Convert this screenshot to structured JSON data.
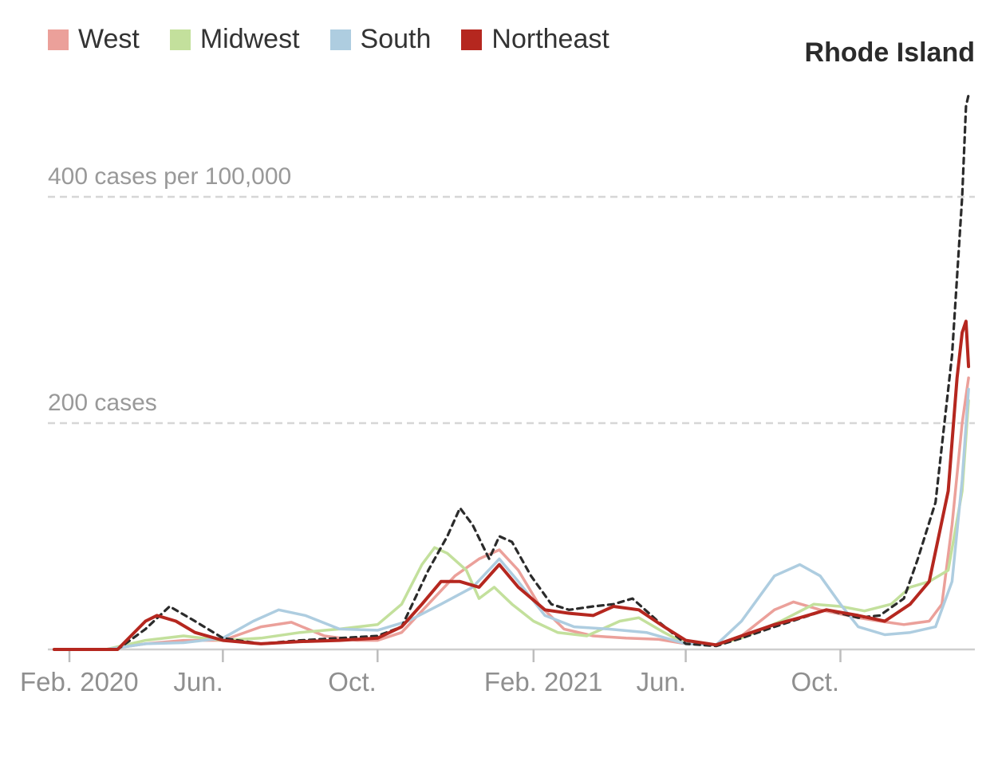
{
  "chart_data": {
    "type": "line",
    "title": "",
    "xlabel": "",
    "ylabel": "",
    "x_range": [
      "2020-01-15",
      "2022-01-15"
    ],
    "ylim": [
      0,
      500
    ],
    "grid": "horizontal dashed",
    "legend_position": "top-left",
    "gridlines": [
      {
        "value": 200,
        "label": "200 cases"
      },
      {
        "value": 400,
        "label": "400 cases per 100,000"
      }
    ],
    "x_ticks": [
      {
        "date": "2020-02-01",
        "label": "Feb. 2020"
      },
      {
        "date": "2020-06-01",
        "label": "Jun."
      },
      {
        "date": "2020-10-01",
        "label": "Oct."
      },
      {
        "date": "2021-02-01",
        "label": "Feb. 2021"
      },
      {
        "date": "2021-06-01",
        "label": "Jun."
      },
      {
        "date": "2021-10-01",
        "label": "Oct."
      }
    ],
    "annotation": {
      "label": "Rhode Island",
      "series": "Rhode Island"
    },
    "series": [
      {
        "name": "West",
        "color": "#eba09a",
        "width": 3.5,
        "dash": "",
        "legend": true,
        "points": [
          [
            "2020-01-20",
            0
          ],
          [
            "2020-03-01",
            0
          ],
          [
            "2020-04-01",
            5
          ],
          [
            "2020-05-01",
            8
          ],
          [
            "2020-06-01",
            8
          ],
          [
            "2020-07-01",
            20
          ],
          [
            "2020-07-25",
            24
          ],
          [
            "2020-08-20",
            12
          ],
          [
            "2020-09-15",
            8
          ],
          [
            "2020-10-01",
            8
          ],
          [
            "2020-10-20",
            15
          ],
          [
            "2020-11-10",
            40
          ],
          [
            "2020-12-01",
            65
          ],
          [
            "2020-12-20",
            80
          ],
          [
            "2021-01-05",
            88
          ],
          [
            "2021-01-20",
            70
          ],
          [
            "2021-02-05",
            40
          ],
          [
            "2021-02-25",
            18
          ],
          [
            "2021-03-20",
            12
          ],
          [
            "2021-04-15",
            10
          ],
          [
            "2021-05-10",
            9
          ],
          [
            "2021-06-01",
            5
          ],
          [
            "2021-06-25",
            4
          ],
          [
            "2021-07-15",
            12
          ],
          [
            "2021-08-10",
            35
          ],
          [
            "2021-08-25",
            42
          ],
          [
            "2021-09-15",
            35
          ],
          [
            "2021-10-15",
            28
          ],
          [
            "2021-11-01",
            25
          ],
          [
            "2021-11-20",
            22
          ],
          [
            "2021-12-10",
            25
          ],
          [
            "2021-12-20",
            40
          ],
          [
            "2021-12-28",
            110
          ],
          [
            "2022-01-05",
            200
          ],
          [
            "2022-01-10",
            240
          ]
        ]
      },
      {
        "name": "Midwest",
        "color": "#c3e09c",
        "width": 3.5,
        "dash": "",
        "legend": true,
        "points": [
          [
            "2020-01-20",
            0
          ],
          [
            "2020-03-01",
            0
          ],
          [
            "2020-04-01",
            8
          ],
          [
            "2020-05-01",
            12
          ],
          [
            "2020-06-01",
            8
          ],
          [
            "2020-07-01",
            10
          ],
          [
            "2020-08-01",
            15
          ],
          [
            "2020-09-01",
            18
          ],
          [
            "2020-10-01",
            22
          ],
          [
            "2020-10-20",
            40
          ],
          [
            "2020-11-05",
            75
          ],
          [
            "2020-11-15",
            90
          ],
          [
            "2020-11-25",
            85
          ],
          [
            "2020-12-10",
            70
          ],
          [
            "2020-12-20",
            45
          ],
          [
            "2021-01-01",
            55
          ],
          [
            "2021-01-15",
            40
          ],
          [
            "2021-02-01",
            25
          ],
          [
            "2021-02-20",
            15
          ],
          [
            "2021-03-15",
            12
          ],
          [
            "2021-04-10",
            25
          ],
          [
            "2021-04-25",
            28
          ],
          [
            "2021-05-15",
            15
          ],
          [
            "2021-06-01",
            5
          ],
          [
            "2021-06-25",
            4
          ],
          [
            "2021-07-15",
            10
          ],
          [
            "2021-08-15",
            25
          ],
          [
            "2021-09-10",
            40
          ],
          [
            "2021-10-01",
            38
          ],
          [
            "2021-10-20",
            34
          ],
          [
            "2021-11-10",
            40
          ],
          [
            "2021-11-25",
            55
          ],
          [
            "2021-12-10",
            60
          ],
          [
            "2021-12-25",
            70
          ],
          [
            "2022-01-05",
            140
          ],
          [
            "2022-01-10",
            220
          ]
        ]
      },
      {
        "name": "South",
        "color": "#aecde0",
        "width": 3.5,
        "dash": "",
        "legend": true,
        "points": [
          [
            "2020-01-20",
            0
          ],
          [
            "2020-03-01",
            0
          ],
          [
            "2020-04-01",
            5
          ],
          [
            "2020-05-01",
            6
          ],
          [
            "2020-06-01",
            10
          ],
          [
            "2020-06-25",
            25
          ],
          [
            "2020-07-15",
            35
          ],
          [
            "2020-08-05",
            30
          ],
          [
            "2020-09-01",
            18
          ],
          [
            "2020-10-01",
            17
          ],
          [
            "2020-10-25",
            25
          ],
          [
            "2020-11-20",
            40
          ],
          [
            "2020-12-15",
            55
          ],
          [
            "2021-01-05",
            80
          ],
          [
            "2021-01-20",
            60
          ],
          [
            "2021-02-10",
            30
          ],
          [
            "2021-03-05",
            20
          ],
          [
            "2021-04-01",
            18
          ],
          [
            "2021-05-01",
            15
          ],
          [
            "2021-06-01",
            5
          ],
          [
            "2021-06-25",
            4
          ],
          [
            "2021-07-15",
            25
          ],
          [
            "2021-08-10",
            65
          ],
          [
            "2021-08-30",
            75
          ],
          [
            "2021-09-15",
            65
          ],
          [
            "2021-10-01",
            40
          ],
          [
            "2021-10-15",
            20
          ],
          [
            "2021-11-05",
            13
          ],
          [
            "2021-11-25",
            15
          ],
          [
            "2021-12-15",
            20
          ],
          [
            "2021-12-28",
            60
          ],
          [
            "2022-01-05",
            150
          ],
          [
            "2022-01-10",
            230
          ]
        ]
      },
      {
        "name": "Rhode Island",
        "color": "#2b2b2b",
        "width": 3.2,
        "dash": "7 6",
        "legend": false,
        "points": [
          [
            "2020-01-20",
            0
          ],
          [
            "2020-03-10",
            0
          ],
          [
            "2020-04-01",
            18
          ],
          [
            "2020-04-20",
            38
          ],
          [
            "2020-05-10",
            25
          ],
          [
            "2020-06-01",
            10
          ],
          [
            "2020-07-01",
            5
          ],
          [
            "2020-08-01",
            8
          ],
          [
            "2020-09-01",
            10
          ],
          [
            "2020-10-01",
            12
          ],
          [
            "2020-10-20",
            20
          ],
          [
            "2020-11-10",
            70
          ],
          [
            "2020-11-25",
            100
          ],
          [
            "2020-12-05",
            125
          ],
          [
            "2020-12-15",
            110
          ],
          [
            "2020-12-28",
            80
          ],
          [
            "2021-01-05",
            100
          ],
          [
            "2021-01-15",
            95
          ],
          [
            "2021-01-30",
            65
          ],
          [
            "2021-02-15",
            40
          ],
          [
            "2021-03-01",
            35
          ],
          [
            "2021-03-20",
            38
          ],
          [
            "2021-04-05",
            40
          ],
          [
            "2021-04-20",
            45
          ],
          [
            "2021-05-10",
            25
          ],
          [
            "2021-06-01",
            5
          ],
          [
            "2021-06-25",
            3
          ],
          [
            "2021-07-15",
            10
          ],
          [
            "2021-08-10",
            20
          ],
          [
            "2021-09-01",
            28
          ],
          [
            "2021-09-20",
            35
          ],
          [
            "2021-10-15",
            28
          ],
          [
            "2021-11-01",
            30
          ],
          [
            "2021-11-20",
            45
          ],
          [
            "2021-12-01",
            80
          ],
          [
            "2021-12-15",
            130
          ],
          [
            "2021-12-28",
            260
          ],
          [
            "2022-01-05",
            400
          ],
          [
            "2022-01-08",
            480
          ],
          [
            "2022-01-10",
            490
          ]
        ]
      },
      {
        "name": "Northeast",
        "color": "#b5271f",
        "width": 4,
        "dash": "",
        "legend": true,
        "points": [
          [
            "2020-01-20",
            0
          ],
          [
            "2020-03-10",
            0
          ],
          [
            "2020-04-01",
            25
          ],
          [
            "2020-04-10",
            30
          ],
          [
            "2020-04-25",
            25
          ],
          [
            "2020-05-10",
            15
          ],
          [
            "2020-06-01",
            8
          ],
          [
            "2020-07-01",
            5
          ],
          [
            "2020-08-01",
            7
          ],
          [
            "2020-09-01",
            8
          ],
          [
            "2020-10-01",
            10
          ],
          [
            "2020-10-20",
            20
          ],
          [
            "2020-11-05",
            40
          ],
          [
            "2020-11-20",
            60
          ],
          [
            "2020-12-05",
            60
          ],
          [
            "2020-12-20",
            55
          ],
          [
            "2021-01-05",
            75
          ],
          [
            "2021-01-20",
            55
          ],
          [
            "2021-02-10",
            35
          ],
          [
            "2021-03-01",
            32
          ],
          [
            "2021-03-20",
            30
          ],
          [
            "2021-04-05",
            38
          ],
          [
            "2021-04-25",
            35
          ],
          [
            "2021-05-15",
            20
          ],
          [
            "2021-06-01",
            8
          ],
          [
            "2021-06-25",
            4
          ],
          [
            "2021-07-15",
            12
          ],
          [
            "2021-08-10",
            22
          ],
          [
            "2021-08-30",
            28
          ],
          [
            "2021-09-20",
            35
          ],
          [
            "2021-10-15",
            30
          ],
          [
            "2021-11-05",
            25
          ],
          [
            "2021-11-25",
            40
          ],
          [
            "2021-12-10",
            60
          ],
          [
            "2021-12-25",
            140
          ],
          [
            "2022-01-01",
            240
          ],
          [
            "2022-01-05",
            280
          ],
          [
            "2022-01-08",
            290
          ],
          [
            "2022-01-10",
            250
          ]
        ]
      }
    ]
  }
}
